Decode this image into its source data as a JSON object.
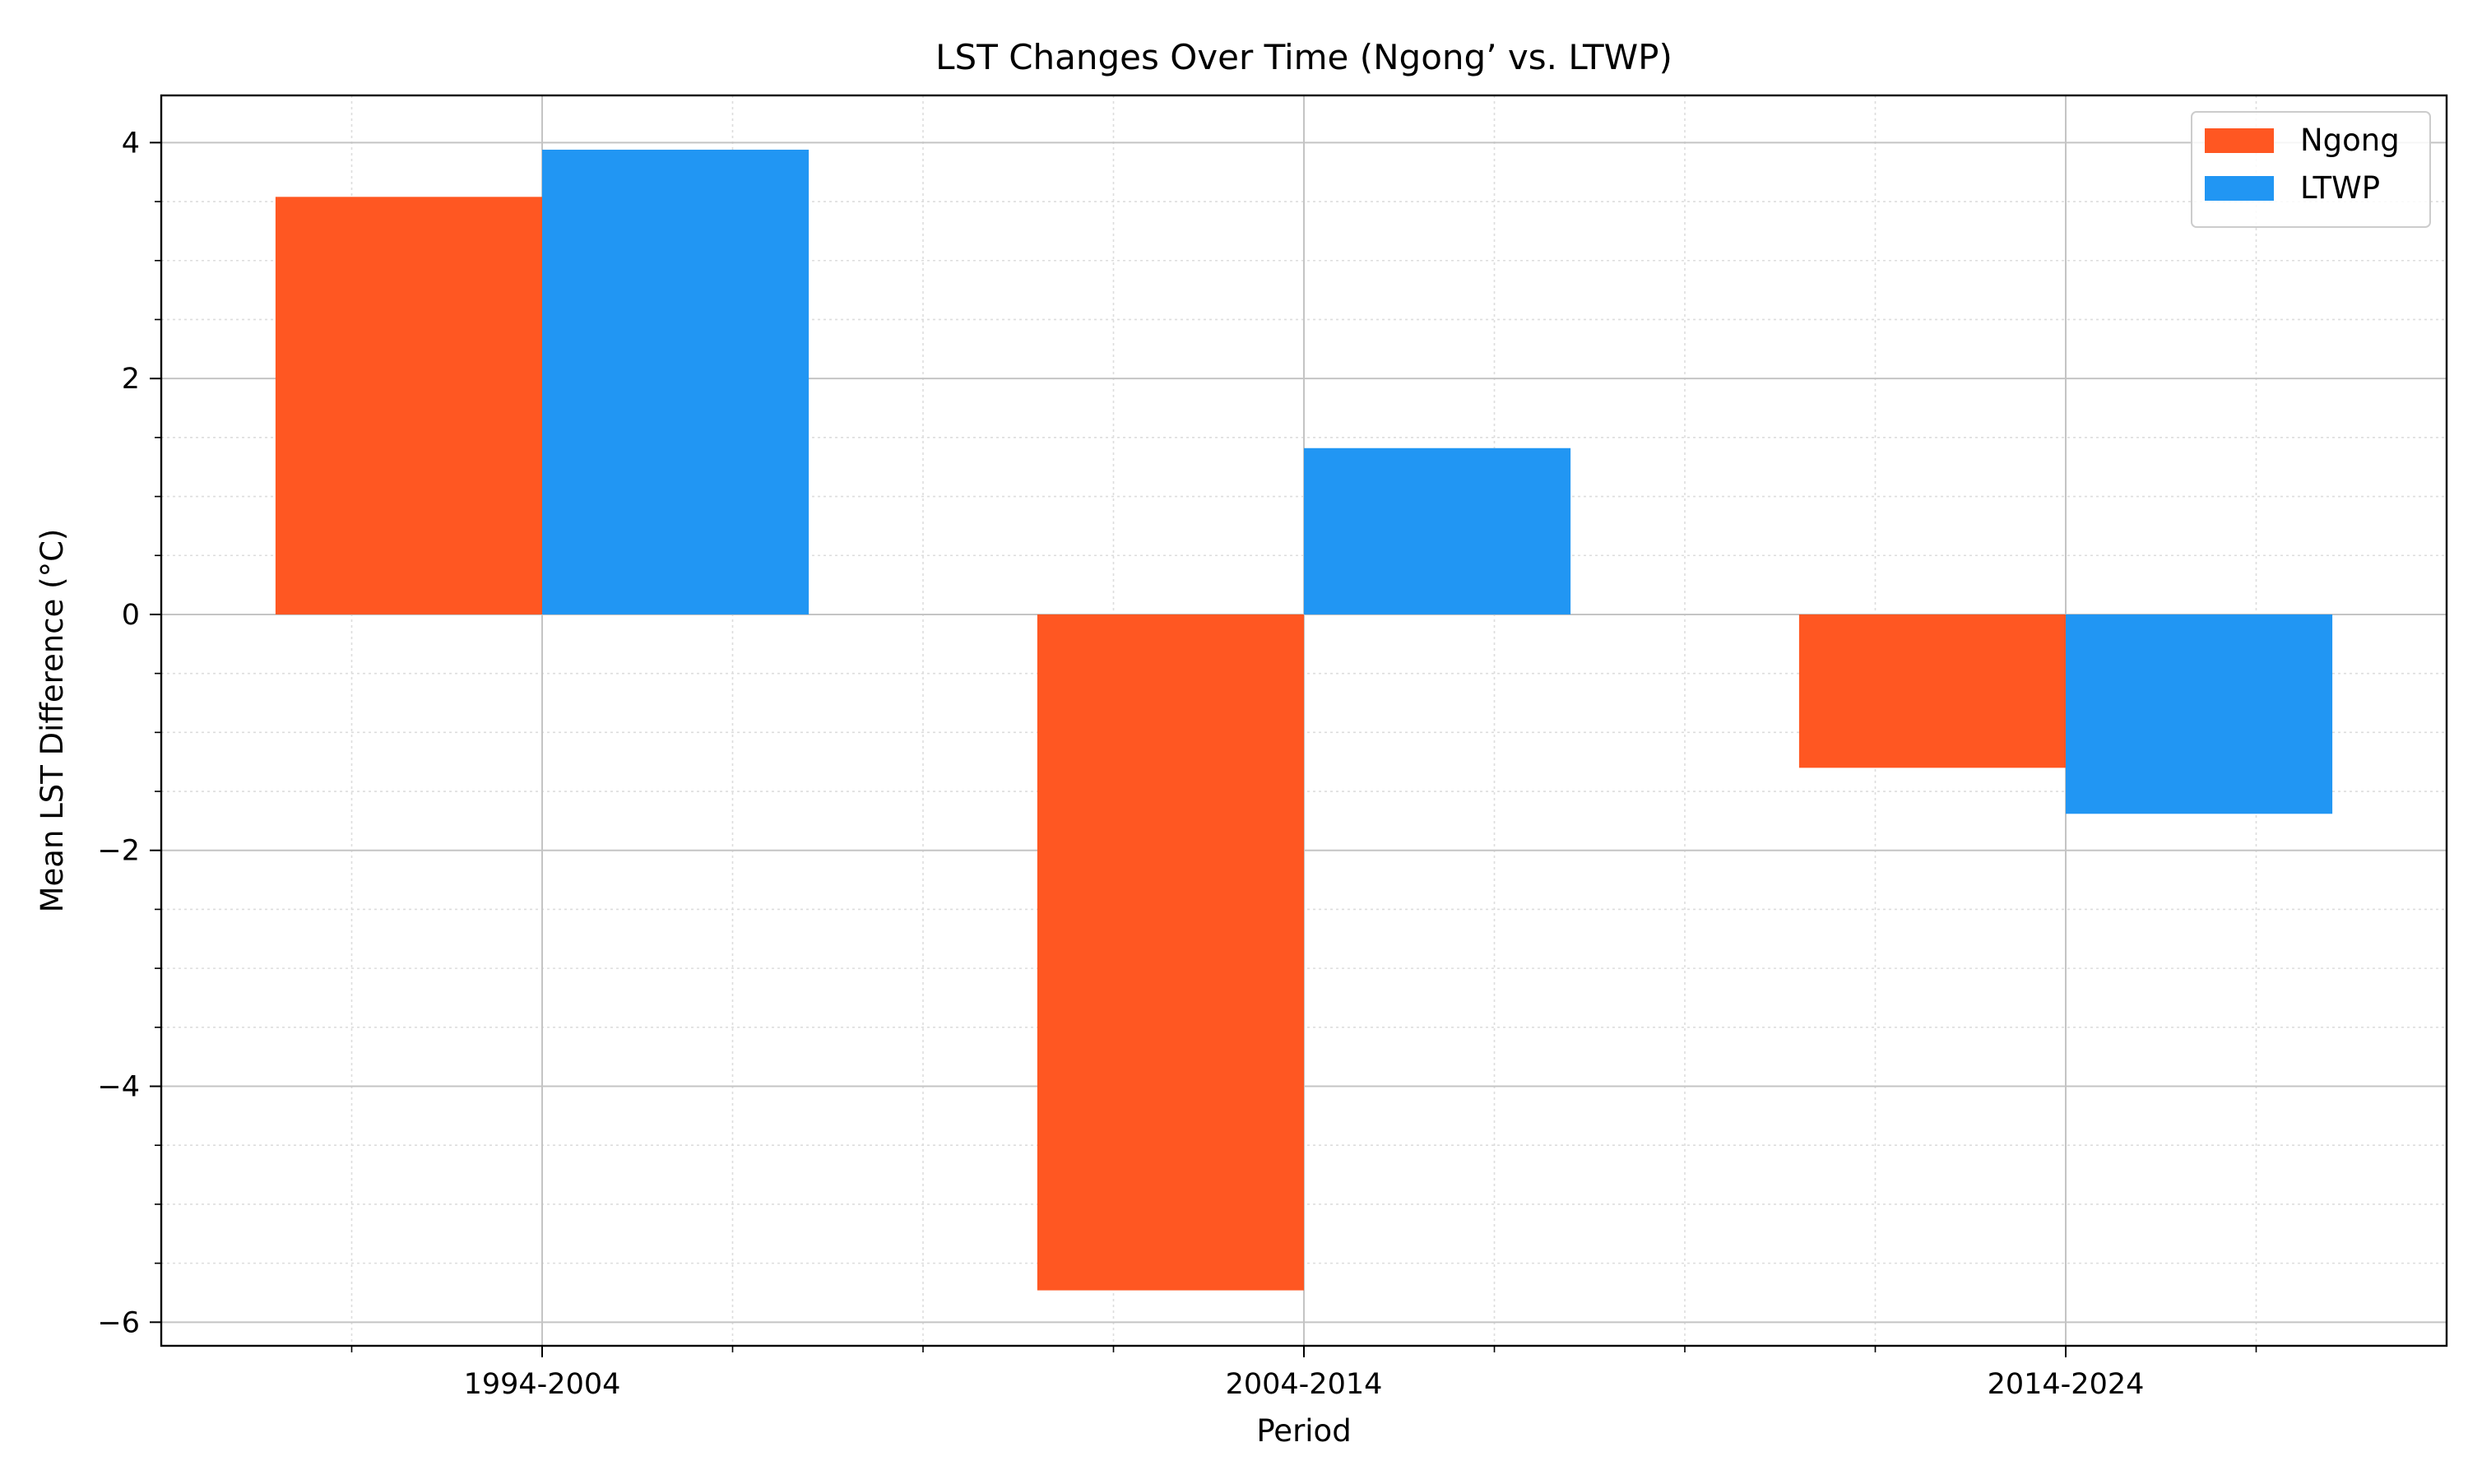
{
  "chart_data": {
    "type": "bar",
    "title": "LST Changes Over Time (Ngong’ vs. LTWP)",
    "xlabel": "Period",
    "ylabel": "Mean LST Difference (°C)",
    "categories": [
      "1994-2004",
      "2004-2014",
      "2014-2024"
    ],
    "series": [
      {
        "name": "Ngong",
        "color": "#FF5722",
        "values": [
          3.54,
          -5.73,
          -1.3
        ]
      },
      {
        "name": "LTWP",
        "color": "#2196F3",
        "values": [
          3.94,
          1.41,
          -1.69
        ]
      }
    ],
    "ylim": [
      -6.2,
      4.4
    ],
    "yticks": [
      4,
      2,
      0,
      -2,
      -4,
      -6
    ],
    "ytick_labels": [
      "4",
      "2",
      "0",
      "−2",
      "−4",
      "−6"
    ],
    "grid": true,
    "minor_grid": true,
    "legend_position": "top-right"
  }
}
